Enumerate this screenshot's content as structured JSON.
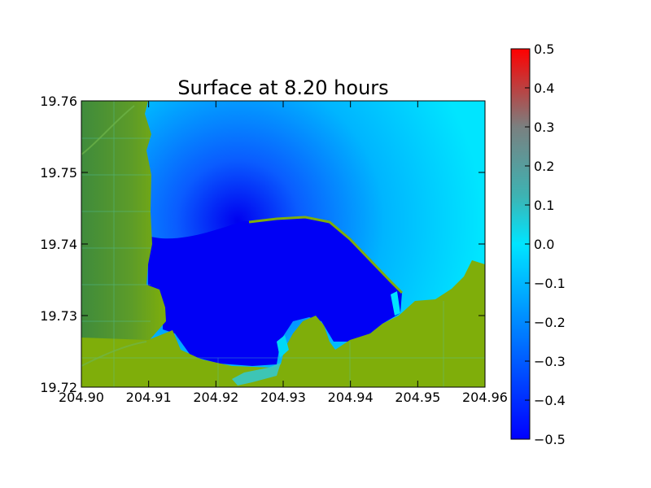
{
  "chart_data": {
    "type": "heatmap",
    "title": "Surface at 8.20 hours",
    "xlabel": "",
    "ylabel": "",
    "xlim": [
      204.9,
      204.96
    ],
    "ylim": [
      19.72,
      19.76
    ],
    "x_ticks": [
      "204.90",
      "204.91",
      "204.92",
      "204.93",
      "204.94",
      "204.95",
      "204.96"
    ],
    "y_ticks": [
      "19.76",
      "19.75",
      "19.74",
      "19.73",
      "19.72"
    ],
    "colorbar": {
      "vmin": -0.5,
      "vmax": 0.5,
      "ticks": [
        "0.5",
        "0.4",
        "0.3",
        "0.2",
        "0.1",
        "0.0",
        "−0.1",
        "−0.2",
        "−0.3",
        "−0.4",
        "−0.5"
      ],
      "colors": [
        "#0000ff",
        "#00e5ff",
        "#ff0000"
      ]
    },
    "colors": {
      "land": "#7fae0a",
      "land_dark": "#3e8a3a",
      "water_deep": "#0000f5",
      "water_mid": "#0c7cff",
      "water_shallow": "#00e3ff",
      "grid": "#55d7c8"
    }
  }
}
